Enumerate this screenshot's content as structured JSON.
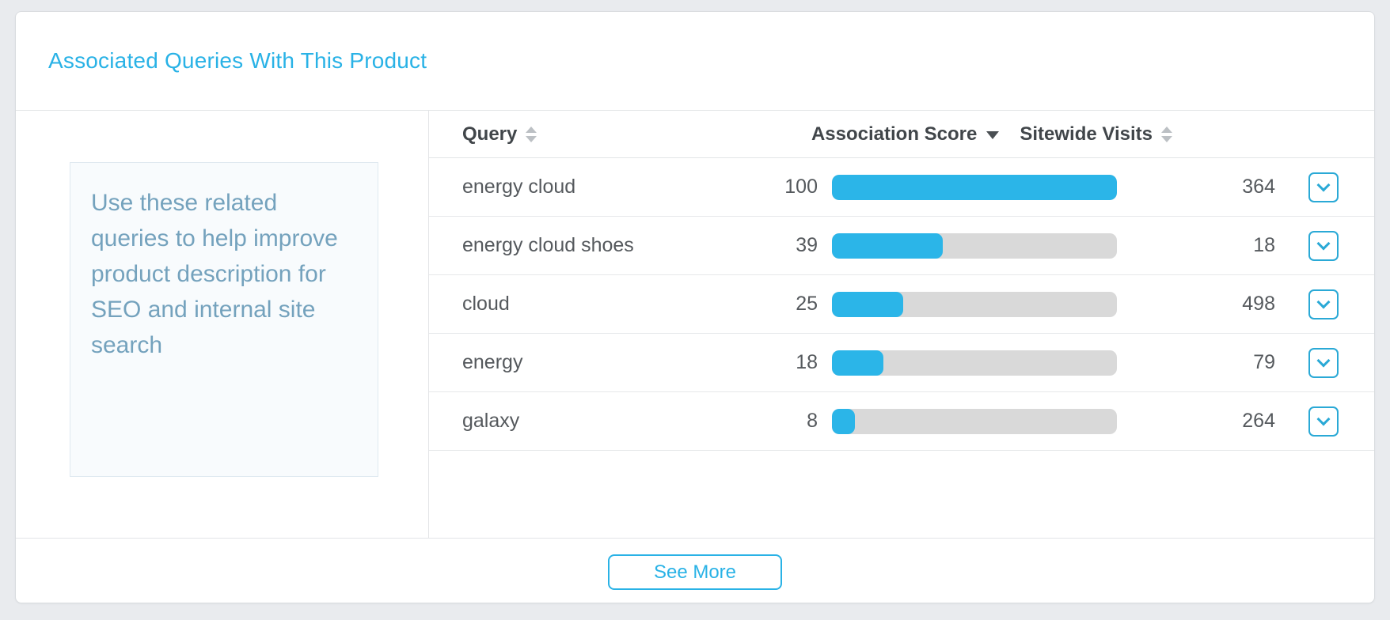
{
  "card": {
    "title": "Associated Queries With This Product"
  },
  "info_panel": {
    "text": "Use these related queries to help improve product description for SEO and internal site search"
  },
  "table": {
    "columns": [
      {
        "label": "Query",
        "sort": "none"
      },
      {
        "label": "Association Score",
        "sort": "desc"
      },
      {
        "label": "Sitewide Visits",
        "sort": "none"
      }
    ],
    "score_max": 100,
    "rows": [
      {
        "query": "energy cloud",
        "score": 100,
        "visits": 364
      },
      {
        "query": "energy cloud shoes",
        "score": 39,
        "visits": 18
      },
      {
        "query": "cloud",
        "score": 25,
        "visits": 498
      },
      {
        "query": "energy",
        "score": 18,
        "visits": 79
      },
      {
        "query": "galaxy",
        "score": 8,
        "visits": 264
      }
    ]
  },
  "footer": {
    "see_more_label": "See More"
  },
  "colors": {
    "accent": "#29b2e6",
    "bar_fill": "#2bb5e8",
    "bar_track": "#d9d9d9",
    "info_text": "#74a2bd",
    "page_background": "#e9ebee",
    "header_text": "#41464a",
    "row_text": "#55595d"
  }
}
